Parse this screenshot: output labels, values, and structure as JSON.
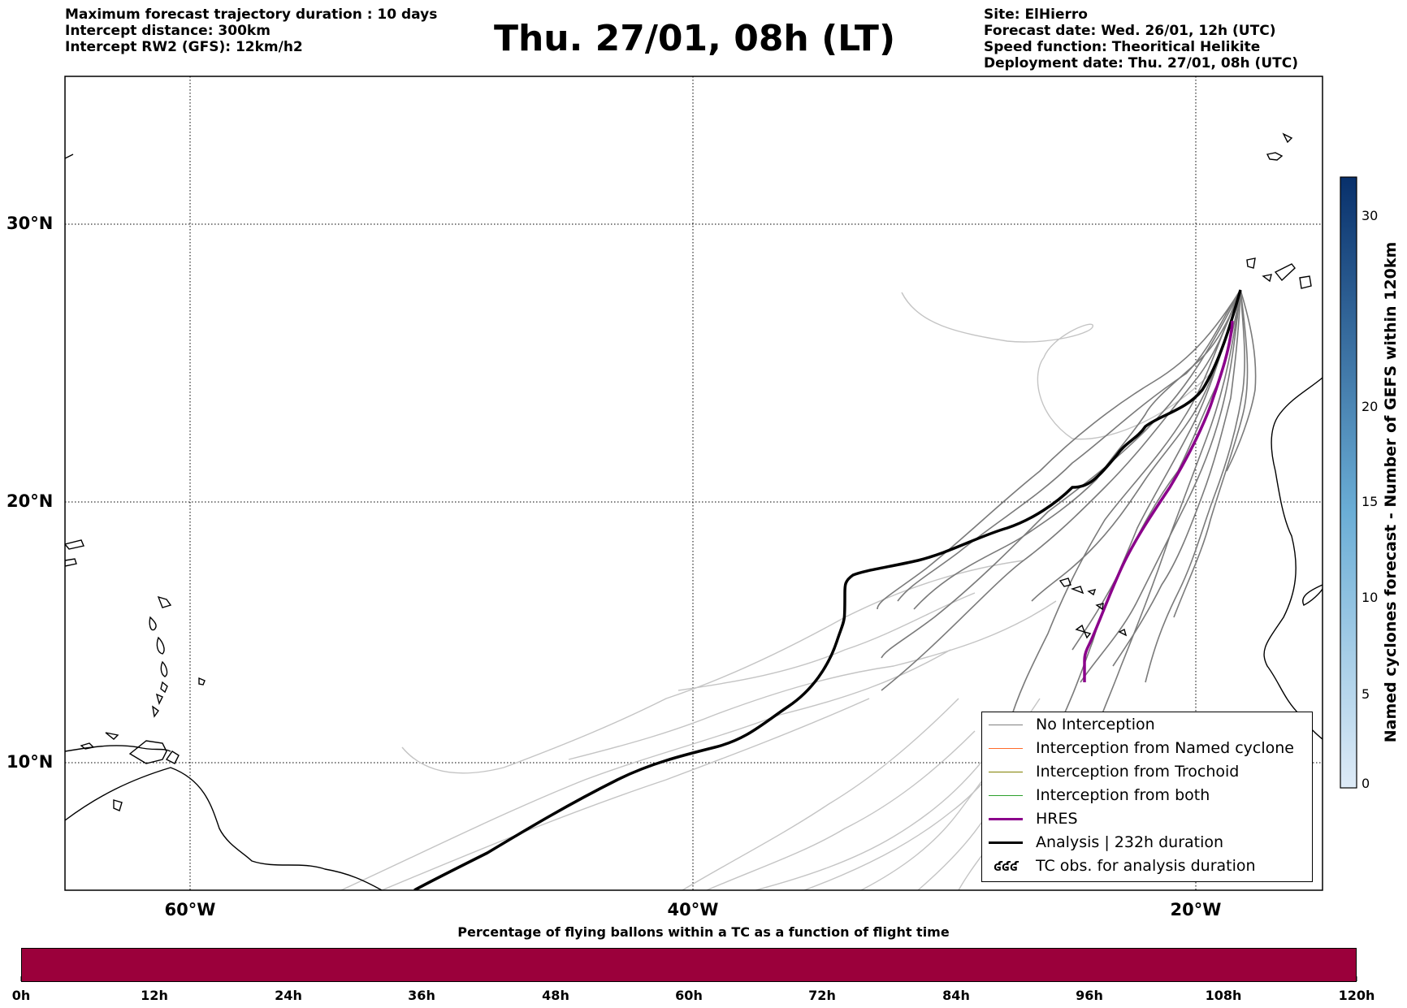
{
  "header": {
    "left_lines": [
      "Maximum forecast trajectory duration : 10 days",
      "Intercept distance: 300km",
      "Intercept RW2 (GFS):  12km/h2"
    ],
    "title": "Thu. 27/01, 08h (LT)",
    "right_lines": [
      "Site: ElHierro",
      "Forecast date: Wed. 26/01, 12h (UTC)",
      "Speed function: Theoritical Helikite",
      "Deployment date: Thu. 27/01, 08h (UTC)"
    ]
  },
  "map": {
    "lat_labels": [
      "30°N",
      "20°N",
      "10°N"
    ],
    "lon_labels": [
      "60°W",
      "40°W",
      "20°W"
    ],
    "lat_range": [
      4.8,
      35.4
    ],
    "lon_range": [
      -65,
      -15
    ],
    "colors": {
      "no_interception": "#808080",
      "named_cyclone": "#ff6b2a",
      "trochoid": "#808000",
      "both": "#2ca02c",
      "hres": "#8b008b",
      "analysis": "#000000"
    }
  },
  "legend": {
    "items": [
      {
        "label": "No Interception",
        "icon": "gray-line"
      },
      {
        "label": "Interception from Named cyclone",
        "icon": "orange-line"
      },
      {
        "label": "Interception from Trochoid",
        "icon": "olive-line"
      },
      {
        "label": "Interception from both",
        "icon": "green-line"
      },
      {
        "label": "HRES",
        "icon": "purple-line"
      },
      {
        "label": "Analysis | 232h duration",
        "icon": "black-line"
      },
      {
        "label": "TC obs. for analysis duration",
        "icon": "cyclone-icon",
        "glyph": "ʛʛʛ"
      }
    ]
  },
  "colorbar": {
    "label": "Named cyclones forecast - Number of GEFS within 120km",
    "ticks": [
      "0",
      "5",
      "10",
      "15",
      "20",
      "30"
    ],
    "min": 0,
    "max": 32
  },
  "bottom": {
    "title": "Percentage of flying ballons within a TC as a function of flight time",
    "hour_ticks": [
      "0h",
      "12h",
      "24h",
      "36h",
      "48h",
      "60h",
      "72h",
      "84h",
      "96h",
      "108h",
      "120h"
    ],
    "bar_color": "#9b003b"
  }
}
